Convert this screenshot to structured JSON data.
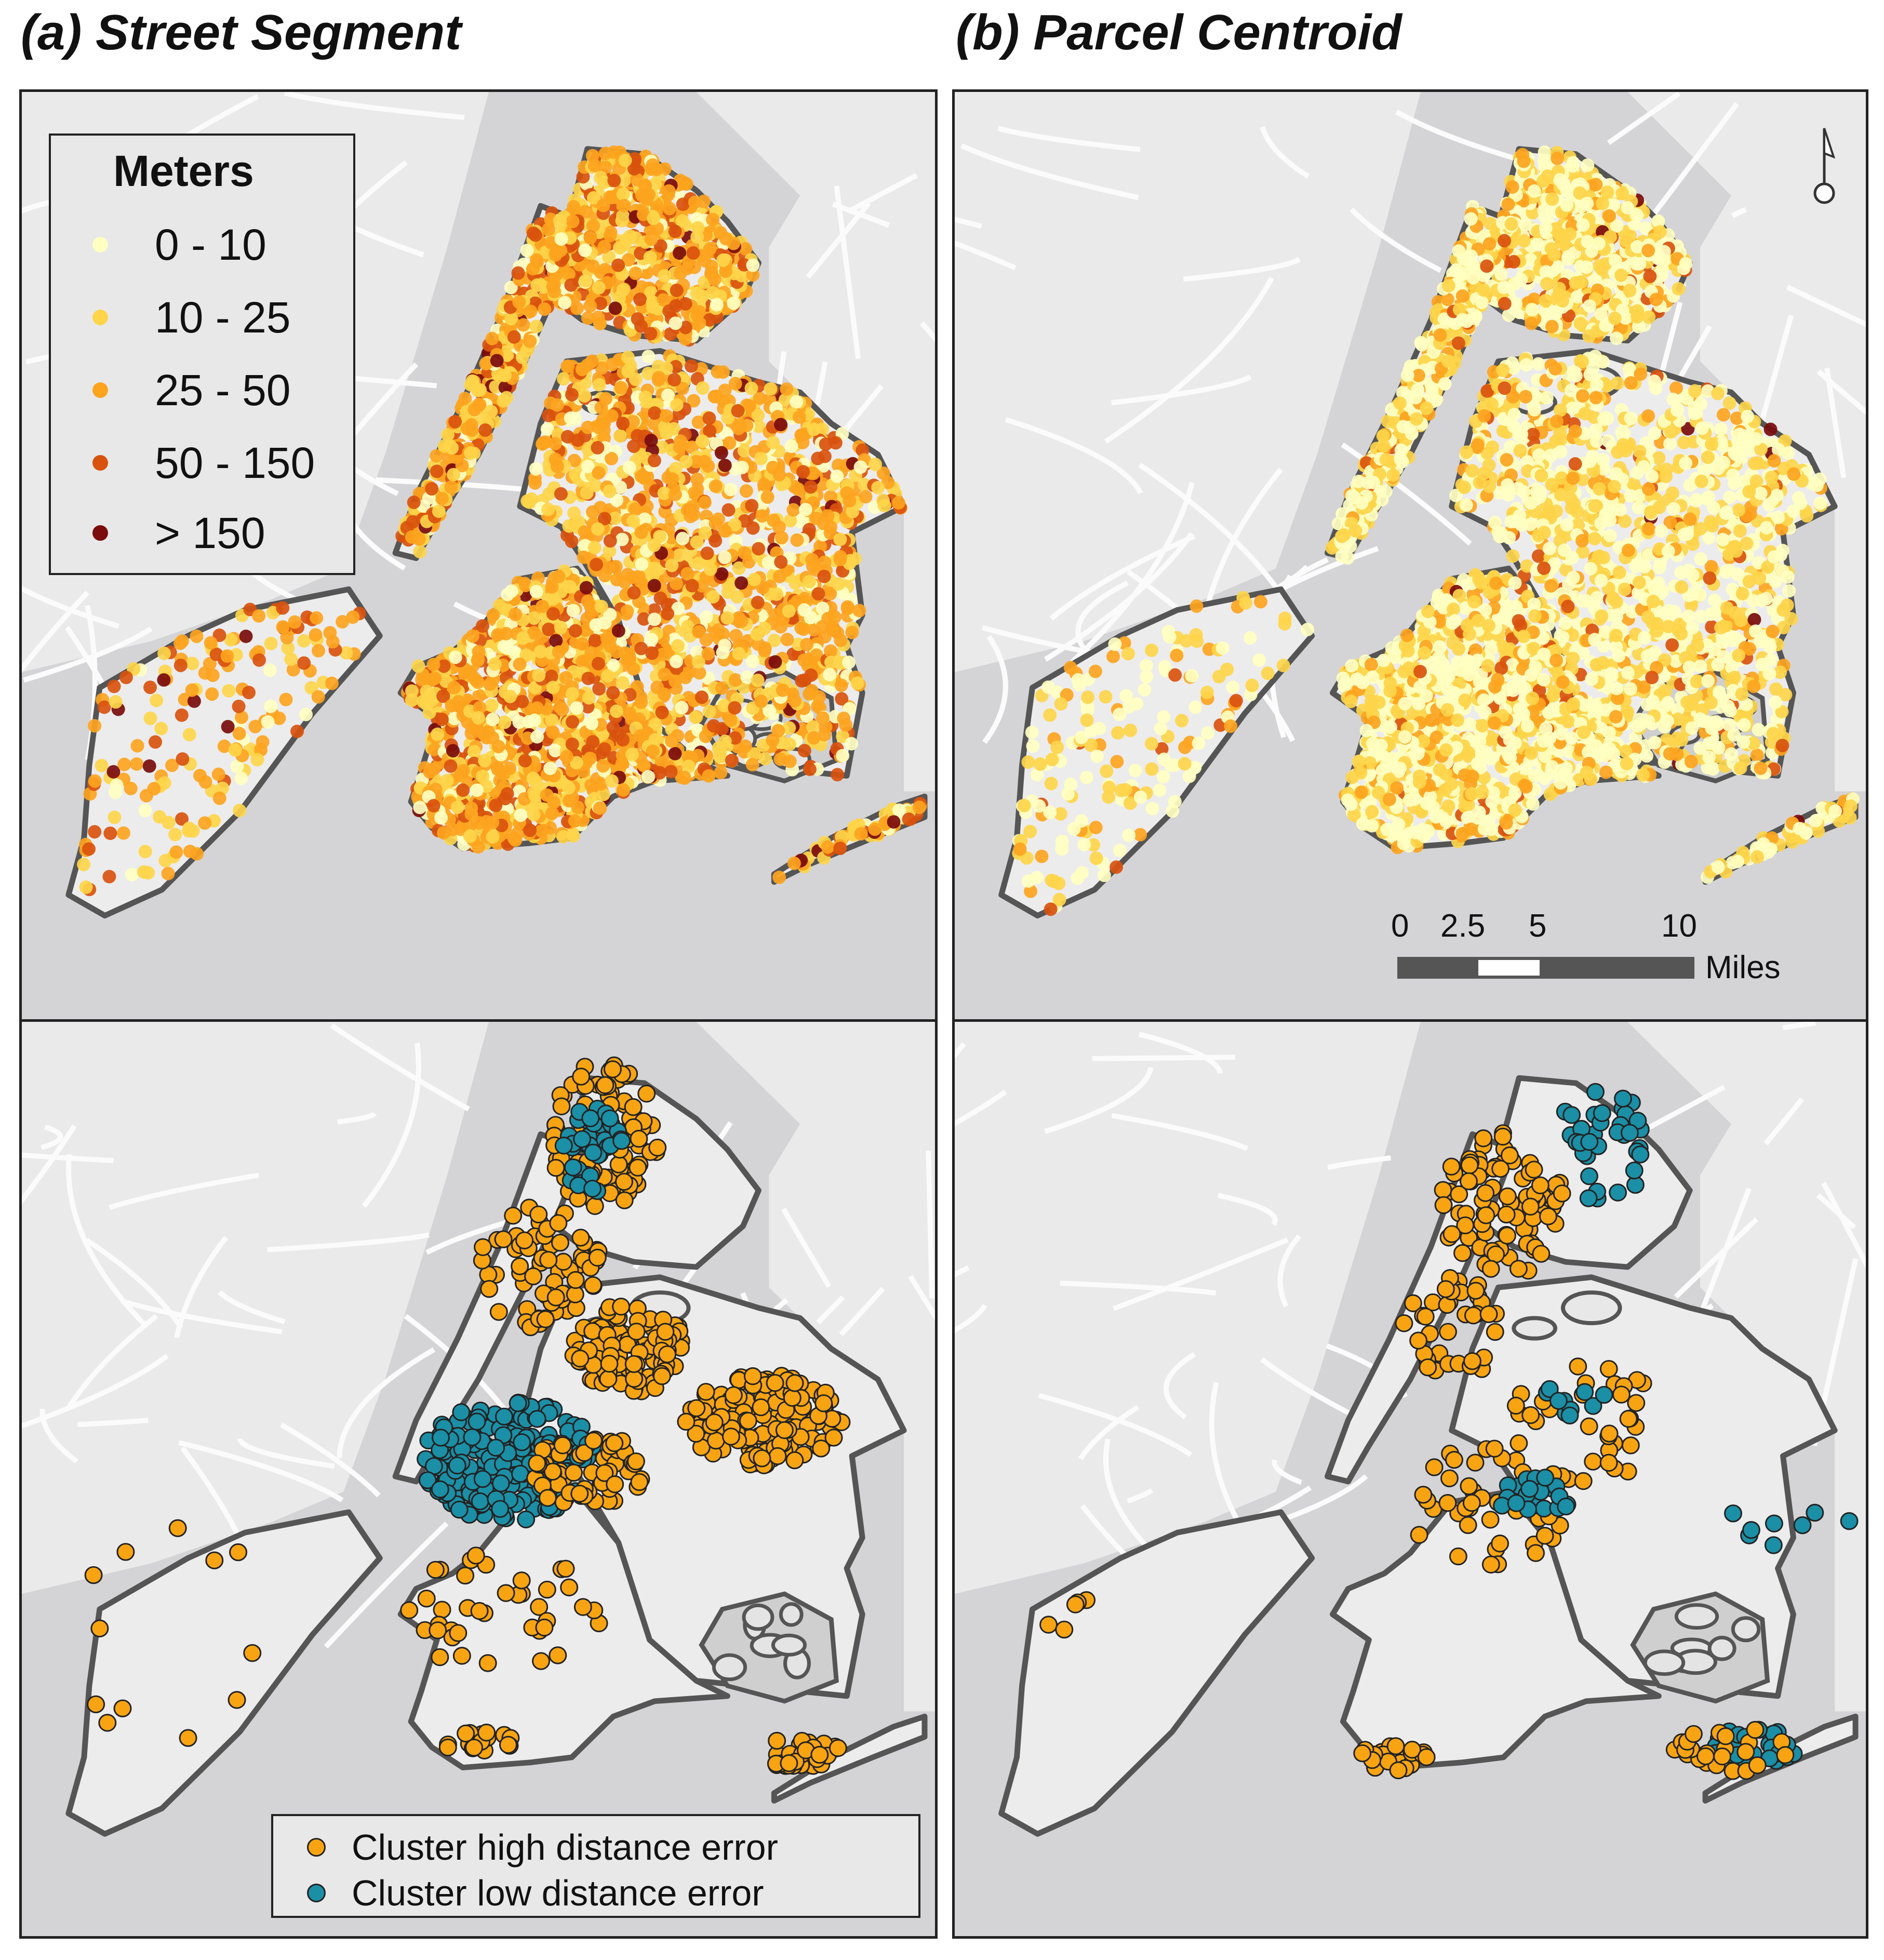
{
  "titles": {
    "a": "(a) Street Segment",
    "b": "(b) Parcel Centroid"
  },
  "legend_meters": {
    "title": "Meters",
    "items": [
      {
        "label": "0 - 10",
        "color": "#ffffc2"
      },
      {
        "label": "10 - 25",
        "color": "#fed54a"
      },
      {
        "label": "25 - 50",
        "color": "#fda41f"
      },
      {
        "label": "50 - 150",
        "color": "#d9530e"
      },
      {
        "label": "> 150",
        "color": "#7a0c0c"
      }
    ]
  },
  "legend_cluster": {
    "items": [
      {
        "label": "Cluster high distance error",
        "color": "#f8a412"
      },
      {
        "label": "Cluster low distance error",
        "color": "#1b8fa6"
      }
    ]
  },
  "scalebar": {
    "ticks": [
      "0",
      "2.5",
      "5",
      "10"
    ],
    "units": "Miles"
  },
  "colors": {
    "water": "#d4d4d6",
    "land": "#eaeaea",
    "roads": "#fafafa",
    "boundary": "#555555"
  }
}
